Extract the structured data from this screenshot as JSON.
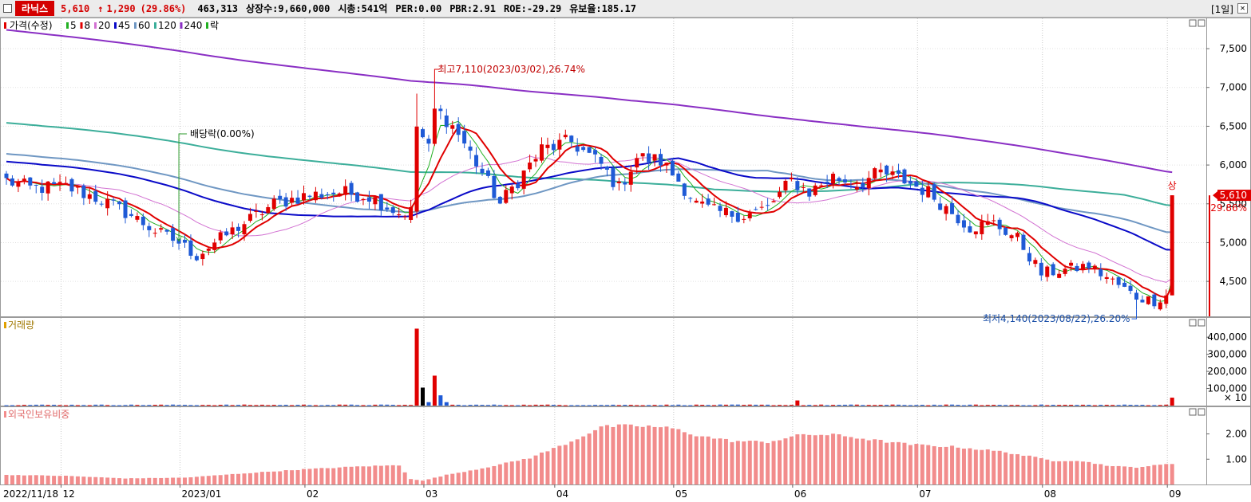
{
  "header": {
    "name": "라닉스",
    "price": "5,610",
    "arrow": "↑",
    "change": "1,290",
    "change_pct": "(29.86%)",
    "volume": "463,313",
    "shares": "상장수:9,660,000",
    "mktcap": "시총:541억",
    "per": "PER:0.00",
    "pbr": "PBR:2.91",
    "roe": "ROE:-29.29",
    "float": "유보율:185.17",
    "period": "[1일]",
    "close_glyph": "✕"
  },
  "colors": {
    "up": "#e00000",
    "down": "#1f5ad6",
    "ma5": "#22b022",
    "ma8": "#e00000",
    "ma20": "#d272d2",
    "ma45": "#0a0ac8",
    "ma60": "#6f97c3",
    "ma120": "#3cae9a",
    "ma240": "#8a2fc4",
    "foreign": "#f28c8c"
  },
  "chart_data": [
    {
      "type": "candlestick",
      "legend": [
        {
          "label": "가격(수정)",
          "color": "#e00000"
        },
        {
          "label": "5",
          "color": "#22b022"
        },
        {
          "label": "8",
          "color": "#e00000"
        },
        {
          "label": "20",
          "color": "#d272d2"
        },
        {
          "label": "45",
          "color": "#0a0ac8"
        },
        {
          "label": "60",
          "color": "#6f97c3"
        },
        {
          "label": "120",
          "color": "#3cae9a"
        },
        {
          "label": "240",
          "color": "#8a2fc4"
        },
        {
          "label": "락",
          "color": "#22b022"
        }
      ],
      "y_ticks": [
        "7,500",
        "7,000",
        "6,500",
        "6,000",
        "5,500",
        "5,000",
        "4,500"
      ],
      "y_tick_values": [
        7500,
        7000,
        6500,
        6000,
        5500,
        5000,
        4500
      ],
      "ylim": [
        4070,
        7860
      ],
      "annotations": {
        "high": "최고7,110(2023/03/02),26.74%",
        "low": "최저4,140(2023/08/22),26.20%",
        "dividend": "배당락(0.00%)",
        "last_price": "5,610",
        "last_pct": "29.86%",
        "marker": "상"
      },
      "anchors": [
        {
          "i": 0,
          "c": 5800
        },
        {
          "i": 4,
          "c": 5700
        },
        {
          "i": 10,
          "c": 5720
        },
        {
          "i": 16,
          "c": 5550
        },
        {
          "i": 21,
          "c": 5350
        },
        {
          "i": 25,
          "c": 5150
        },
        {
          "i": 29,
          "c": 5000
        },
        {
          "i": 32,
          "c": 4830
        },
        {
          "i": 35,
          "c": 5000
        },
        {
          "i": 39,
          "c": 5200
        },
        {
          "i": 45,
          "c": 5500
        },
        {
          "i": 50,
          "c": 5600
        },
        {
          "i": 56,
          "c": 5650
        },
        {
          "i": 61,
          "c": 5600
        },
        {
          "i": 66,
          "c": 5380
        },
        {
          "i": 68,
          "c": 5400
        },
        {
          "i": 69,
          "c": 6500
        },
        {
          "i": 71,
          "c": 6200
        },
        {
          "i": 72,
          "c": 6700
        },
        {
          "i": 74,
          "c": 6600
        },
        {
          "i": 76,
          "c": 6400
        },
        {
          "i": 80,
          "c": 5900
        },
        {
          "i": 83,
          "c": 5500
        },
        {
          "i": 86,
          "c": 5800
        },
        {
          "i": 90,
          "c": 6200
        },
        {
          "i": 95,
          "c": 6300
        },
        {
          "i": 100,
          "c": 6000
        },
        {
          "i": 103,
          "c": 5700
        },
        {
          "i": 106,
          "c": 6100
        },
        {
          "i": 110,
          "c": 6050
        },
        {
          "i": 113,
          "c": 5800
        },
        {
          "i": 116,
          "c": 5500
        },
        {
          "i": 119,
          "c": 5400
        },
        {
          "i": 124,
          "c": 5350
        },
        {
          "i": 128,
          "c": 5450
        },
        {
          "i": 132,
          "c": 5800
        },
        {
          "i": 135,
          "c": 5650
        },
        {
          "i": 139,
          "c": 5850
        },
        {
          "i": 143,
          "c": 5750
        },
        {
          "i": 147,
          "c": 5900
        },
        {
          "i": 151,
          "c": 5800
        },
        {
          "i": 155,
          "c": 5650
        },
        {
          "i": 158,
          "c": 5450
        },
        {
          "i": 162,
          "c": 5200
        },
        {
          "i": 166,
          "c": 5250
        },
        {
          "i": 170,
          "c": 5050
        },
        {
          "i": 174,
          "c": 4600
        },
        {
          "i": 178,
          "c": 4650
        },
        {
          "i": 182,
          "c": 4700
        },
        {
          "i": 186,
          "c": 4500
        },
        {
          "i": 190,
          "c": 4300
        },
        {
          "i": 193,
          "c": 4250
        },
        {
          "i": 195,
          "c": 4320
        },
        {
          "i": 196,
          "c": 5610
        }
      ],
      "count": 197
    },
    {
      "type": "bar",
      "legend": [
        {
          "label": "거래량",
          "color": "#e0a000"
        }
      ],
      "y_ticks": [
        "400,000",
        "300,000",
        "200,000",
        "100,000"
      ],
      "y_tick_values": [
        400000,
        300000,
        200000,
        100000
      ],
      "unit": "× 10",
      "ylim": [
        0,
        480000
      ],
      "big_bars": [
        {
          "i": 69,
          "v": 450000,
          "dir": "up"
        },
        {
          "i": 70,
          "v": 105000,
          "dir": "flat"
        },
        {
          "i": 71,
          "v": 20000,
          "dir": "down"
        },
        {
          "i": 72,
          "v": 175000,
          "dir": "up"
        },
        {
          "i": 73,
          "v": 60000,
          "dir": "down"
        },
        {
          "i": 74,
          "v": 20000,
          "dir": "down"
        },
        {
          "i": 133,
          "v": 30000,
          "dir": "up"
        },
        {
          "i": 196,
          "v": 46331,
          "dir": "up"
        }
      ],
      "base": 4000
    },
    {
      "type": "bar",
      "legend": [
        {
          "label": "외국인보유비중",
          "color": "#f28c8c"
        }
      ],
      "y_ticks": [
        "2.00",
        "1.00"
      ],
      "y_tick_values": [
        2.0,
        1.0
      ],
      "ylim": [
        0,
        2.9
      ],
      "anchors": [
        {
          "i": 0,
          "v": 0.38
        },
        {
          "i": 10,
          "v": 0.34
        },
        {
          "i": 20,
          "v": 0.24
        },
        {
          "i": 30,
          "v": 0.27
        },
        {
          "i": 40,
          "v": 0.44
        },
        {
          "i": 50,
          "v": 0.6
        },
        {
          "i": 60,
          "v": 0.72
        },
        {
          "i": 66,
          "v": 0.76
        },
        {
          "i": 68,
          "v": 0.22
        },
        {
          "i": 70,
          "v": 0.15
        },
        {
          "i": 74,
          "v": 0.38
        },
        {
          "i": 80,
          "v": 0.64
        },
        {
          "i": 88,
          "v": 1.05
        },
        {
          "i": 95,
          "v": 1.7
        },
        {
          "i": 100,
          "v": 2.28
        },
        {
          "i": 104,
          "v": 2.32
        },
        {
          "i": 108,
          "v": 2.3
        },
        {
          "i": 112,
          "v": 2.22
        },
        {
          "i": 116,
          "v": 1.95
        },
        {
          "i": 122,
          "v": 1.72
        },
        {
          "i": 128,
          "v": 1.68
        },
        {
          "i": 134,
          "v": 1.98
        },
        {
          "i": 140,
          "v": 1.95
        },
        {
          "i": 146,
          "v": 1.75
        },
        {
          "i": 152,
          "v": 1.58
        },
        {
          "i": 160,
          "v": 1.48
        },
        {
          "i": 168,
          "v": 1.28
        },
        {
          "i": 176,
          "v": 0.94
        },
        {
          "i": 180,
          "v": 0.95
        },
        {
          "i": 186,
          "v": 0.72
        },
        {
          "i": 190,
          "v": 0.68
        },
        {
          "i": 196,
          "v": 0.82
        }
      ],
      "count": 197
    }
  ],
  "x_axis": {
    "labels": [
      {
        "i": 0,
        "text": "2022/11/18"
      },
      {
        "i": 10,
        "text": "12"
      },
      {
        "i": 30,
        "text": "2023/01"
      },
      {
        "i": 51,
        "text": "02"
      },
      {
        "i": 71,
        "text": "03"
      },
      {
        "i": 93,
        "text": "04"
      },
      {
        "i": 113,
        "text": "05"
      },
      {
        "i": 133,
        "text": "06"
      },
      {
        "i": 154,
        "text": "07"
      },
      {
        "i": 175,
        "text": "08"
      },
      {
        "i": 196,
        "text": "09"
      }
    ]
  }
}
